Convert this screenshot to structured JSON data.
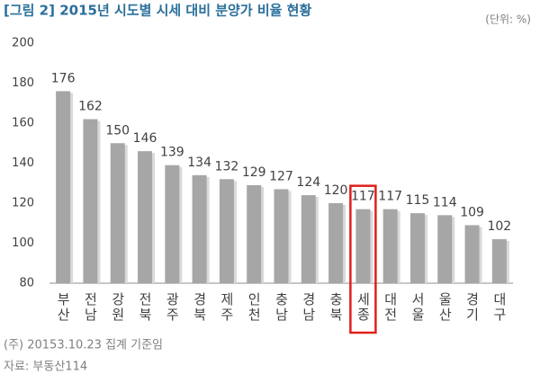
{
  "chart_data": {
    "type": "bar",
    "title": "[그림 2] 2015년 시도별 시세 대비 분양가 비율 현황",
    "unit": "(단위: %)",
    "categories": [
      "부산",
      "전남",
      "강원",
      "전북",
      "광주",
      "경북",
      "제주",
      "인천",
      "충남",
      "경남",
      "충북",
      "세종",
      "대전",
      "서울",
      "울산",
      "경기",
      "대구"
    ],
    "values": [
      176,
      162,
      150,
      146,
      139,
      134,
      132,
      129,
      127,
      124,
      120,
      117,
      117,
      115,
      114,
      109,
      102
    ],
    "color": "#a6a6a6",
    "highlight_index": 11,
    "highlight_color": "#e0201b",
    "ylim": [
      80,
      200
    ],
    "yticks": [
      80,
      100,
      120,
      140,
      160,
      180,
      200
    ],
    "grid": false,
    "notes": [
      "(주) 20153.10.23 집계 기준임",
      "자료: 부동산114"
    ]
  }
}
